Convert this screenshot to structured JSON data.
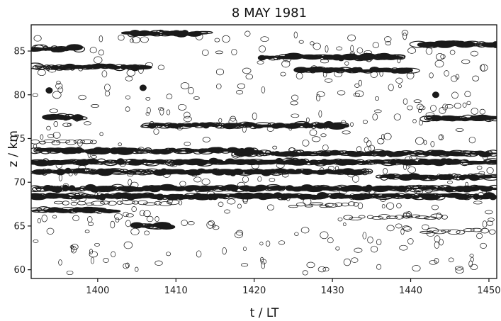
{
  "chart_data": {
    "type": "heatmap",
    "title": "8 MAY 1981",
    "xlabel": "t / LT",
    "ylabel": "z / km",
    "xlim": [
      1391.5,
      1451
    ],
    "ylim": [
      59,
      88
    ],
    "x_ticks": [
      1400,
      1410,
      1420,
      1430,
      1440,
      1450
    ],
    "y_ticks": [
      60,
      65,
      70,
      75,
      80,
      85
    ],
    "x_tick_labels": [
      "1400",
      "1410",
      "1420",
      "1430",
      "1440",
      "1450"
    ],
    "y_tick_labels": [
      "60",
      "65",
      "70",
      "75",
      "80",
      "85"
    ],
    "grid": false,
    "legend": "none",
    "ink_color": "#1a1a1a",
    "strong_layers": [
      {
        "t_start": 1392,
        "t_end": 1398,
        "z": 85.3
      },
      {
        "t_start": 1392,
        "t_end": 1406,
        "z": 83.2
      },
      {
        "t_start": 1404,
        "t_end": 1414,
        "z": 87.0
      },
      {
        "t_start": 1421,
        "t_end": 1439,
        "z": 84.3
      },
      {
        "t_start": 1426,
        "t_end": 1440,
        "z": 82.8
      },
      {
        "t_start": 1441,
        "t_end": 1451,
        "z": 85.8
      },
      {
        "t_start": 1394,
        "t_end": 1398,
        "z": 77.4
      },
      {
        "t_start": 1406,
        "t_end": 1432,
        "z": 76.5
      },
      {
        "t_start": 1442,
        "t_end": 1451,
        "z": 77.3
      },
      {
        "t_start": 1392,
        "t_end": 1420,
        "z": 73.6
      },
      {
        "t_start": 1418,
        "t_end": 1451,
        "z": 73.3
      },
      {
        "t_start": 1392,
        "t_end": 1451,
        "z": 72.3
      },
      {
        "t_start": 1392,
        "t_end": 1435,
        "z": 71.2
      },
      {
        "t_start": 1392,
        "t_end": 1451,
        "z": 69.3
      },
      {
        "t_start": 1392,
        "t_end": 1451,
        "z": 68.4
      },
      {
        "t_start": 1436,
        "t_end": 1451,
        "z": 70.6
      },
      {
        "t_start": 1392,
        "t_end": 1402,
        "z": 66.8
      },
      {
        "t_start": 1405,
        "t_end": 1409,
        "z": 65.0
      }
    ],
    "weak_layers": [
      {
        "t_start": 1395,
        "t_end": 1410,
        "z": 67.6
      },
      {
        "t_start": 1425,
        "t_end": 1432,
        "z": 67.4
      },
      {
        "t_start": 1432,
        "t_end": 1445,
        "z": 66.0
      },
      {
        "t_start": 1392,
        "t_end": 1400,
        "z": 74.6
      },
      {
        "t_start": 1442,
        "t_end": 1451,
        "z": 64.4
      }
    ],
    "blobs": [
      {
        "t": 1393.8,
        "z": 80.5
      },
      {
        "t": 1405.8,
        "z": 80.8
      },
      {
        "t": 1443.2,
        "z": 80.0
      }
    ]
  }
}
